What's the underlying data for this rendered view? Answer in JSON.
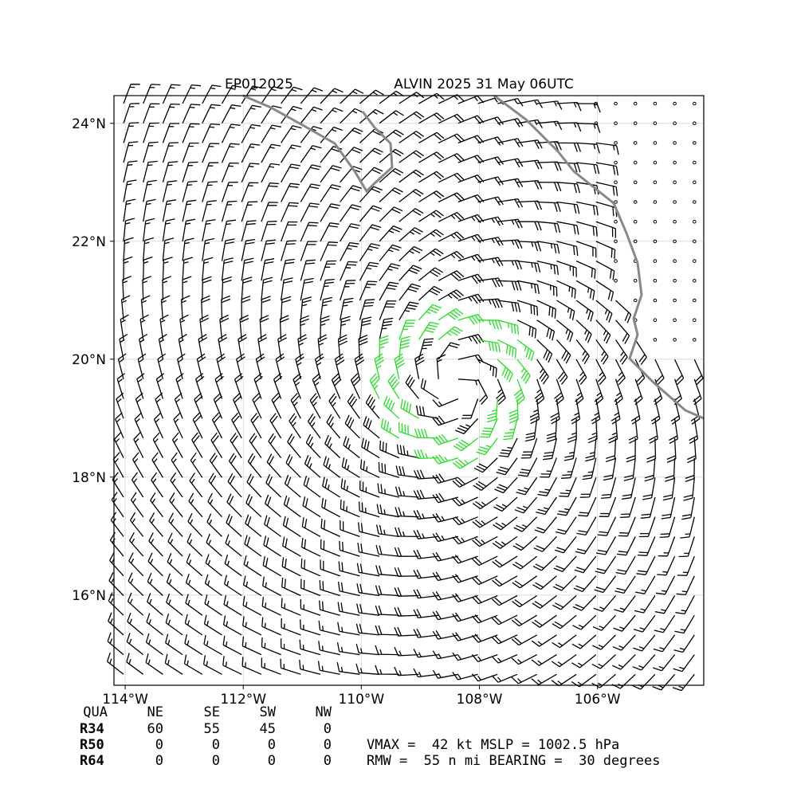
{
  "chart_data": {
    "type": "barbs",
    "storm_id": "EP012025",
    "title": "ALVIN 2025 31 May 06UTC",
    "xlim": [
      -114.19,
      -104.2
    ],
    "ylim": [
      14.47,
      24.47
    ],
    "xticks": [
      {
        "value": -114,
        "label": "114°W"
      },
      {
        "value": -112,
        "label": "112°W"
      },
      {
        "value": -110,
        "label": "110°W"
      },
      {
        "value": -108,
        "label": "108°W"
      },
      {
        "value": -106,
        "label": "106°W"
      }
    ],
    "yticks": [
      {
        "value": 16,
        "label": "16°N"
      },
      {
        "value": 18,
        "label": "18°N"
      },
      {
        "value": 20,
        "label": "20°N"
      },
      {
        "value": 22,
        "label": "22°N"
      },
      {
        "value": 24,
        "label": "24°N"
      }
    ],
    "grid": true,
    "radii_table": {
      "header": [
        "QUA",
        "NE",
        "SE",
        "SW",
        "NW"
      ],
      "rows": [
        [
          "R34",
          60,
          55,
          45,
          0
        ],
        [
          "R50",
          0,
          0,
          0,
          0
        ],
        [
          "R64",
          0,
          0,
          0,
          0
        ]
      ]
    },
    "info_lines": [
      "VMAX =  42 kt MSLP = 1002.5 hPa",
      "RMW =  55 n mi BEARING =  30 degrees"
    ]
  }
}
